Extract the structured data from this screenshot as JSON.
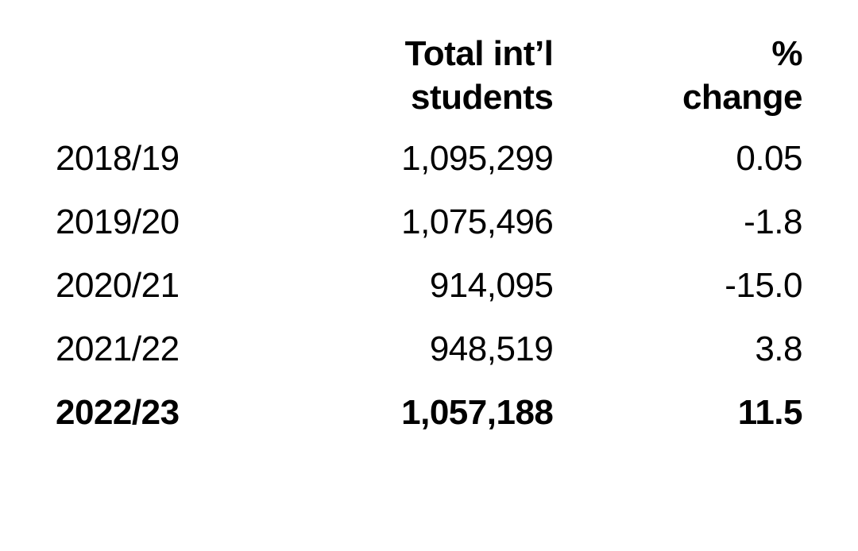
{
  "table": {
    "type": "table",
    "background_color": "#ffffff",
    "text_color": "#000000",
    "header_fontsize": 44,
    "body_fontsize": 44,
    "columns": [
      {
        "key": "year",
        "header_lines": [
          "",
          ""
        ],
        "align": "left",
        "width": "28%"
      },
      {
        "key": "total",
        "header_lines": [
          "Total int’l",
          "students"
        ],
        "align": "right",
        "width": "40%"
      },
      {
        "key": "change",
        "header_lines": [
          "%",
          "change"
        ],
        "align": "right",
        "width": "32%"
      }
    ],
    "rows": [
      {
        "year": "2018/19",
        "total": "1,095,299",
        "change": "0.05",
        "bold": false
      },
      {
        "year": "2019/20",
        "total": "1,075,496",
        "change": "-1.8",
        "bold": false
      },
      {
        "year": "2020/21",
        "total": "914,095",
        "change": "-15.0",
        "bold": false
      },
      {
        "year": "2021/22",
        "total": "948,519",
        "change": "3.8",
        "bold": false
      },
      {
        "year": "2022/23",
        "total": "1,057,188",
        "change": "11.5",
        "bold": true
      }
    ]
  }
}
